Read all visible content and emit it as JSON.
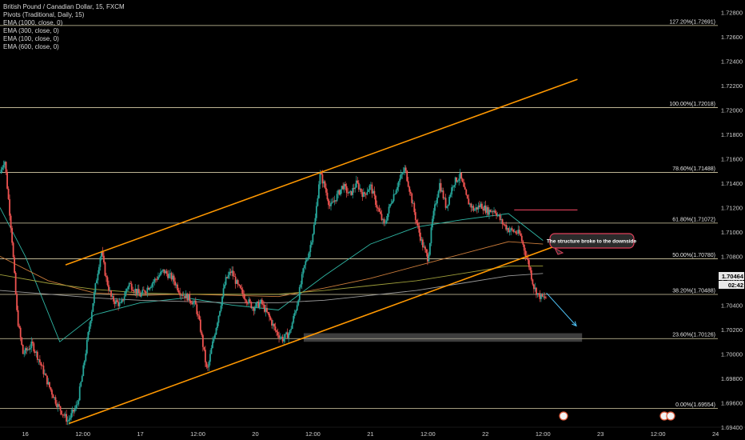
{
  "legend": {
    "symbol": "British Pound / Canadian Dollar, 15, FXCM",
    "indicators": [
      "Pivots (Traditional, Daily, 15)",
      "EMA (1000, close, 0)",
      "EMA (300, close, 0)",
      "EMA (100, close, 0)",
      "EMA (600, close, 0)"
    ]
  },
  "colors": {
    "background": "#000000",
    "up": "#26a69a",
    "down": "#ef5350",
    "channel": "#ff9800",
    "fib": "#d8cfa8",
    "resistance": "#e0405a",
    "ema1000": "#9a9a9a",
    "ema300": "#c97b3a",
    "ema100": "#2fb6a4",
    "ema600": "#9d9d3a",
    "arrow": "#4fc3f7",
    "price_badge": "#e8e8e8"
  },
  "annotation": {
    "text": "The structure broke to the downside"
  },
  "badges": {
    "price": "1.70464",
    "countdown": "02:42"
  },
  "chart_data": {
    "type": "candlestick",
    "xlabel": "",
    "ylabel": "",
    "ylim": [
      1.694,
      1.729
    ],
    "yticks": [
      "1.72800",
      "1.72600",
      "1.72400",
      "1.72200",
      "1.72000",
      "1.71800",
      "1.71600",
      "1.71400",
      "1.71200",
      "1.71000",
      "1.70800",
      "1.70600",
      "1.70400",
      "1.70200",
      "1.70000",
      "1.69800",
      "1.69600",
      "1.69400"
    ],
    "y_tick_values": [
      1.728,
      1.726,
      1.724,
      1.722,
      1.72,
      1.718,
      1.716,
      1.714,
      1.712,
      1.71,
      1.708,
      1.706,
      1.704,
      1.702,
      1.7,
      1.698,
      1.696,
      1.694
    ],
    "xticks": [
      {
        "label": "16",
        "t": 1.0
      },
      {
        "label": "12:00",
        "t": 1.5
      },
      {
        "label": "17",
        "t": 2.0
      },
      {
        "label": "12:00",
        "t": 2.5
      },
      {
        "label": "20",
        "t": 3.0
      },
      {
        "label": "12:00",
        "t": 3.5
      },
      {
        "label": "21",
        "t": 4.0
      },
      {
        "label": "12:00",
        "t": 4.5
      },
      {
        "label": "22",
        "t": 5.0
      },
      {
        "label": "12:00",
        "t": 5.5
      },
      {
        "label": "23",
        "t": 6.0
      },
      {
        "label": "12:00",
        "t": 6.5
      },
      {
        "label": "24",
        "t": 7.0
      }
    ],
    "xlim": [
      0.78,
      7.02
    ],
    "fib_levels": [
      {
        "label": "127.20%(1.72691)",
        "value": 1.72691
      },
      {
        "label": "100.00%(1.72018)",
        "value": 1.72018
      },
      {
        "label": "78.60%(1.71488)",
        "value": 1.71488
      },
      {
        "label": "61.80%(1.71072)",
        "value": 1.71072
      },
      {
        "label": "50.00%(1.70780)",
        "value": 1.7078
      },
      {
        "label": "38.20%(1.70488)",
        "value": 1.70488
      },
      {
        "label": "23.60%(1.70126)",
        "value": 1.70126
      },
      {
        "label": "0.00%(1.69554)",
        "value": 1.69554
      }
    ],
    "channel": {
      "lower": [
        [
          1.38,
          1.6943
        ],
        [
          5.8,
          1.7095
        ]
      ],
      "upper": [
        [
          1.35,
          1.7073
        ],
        [
          5.8,
          1.7225
        ]
      ]
    },
    "support_zone": [
      [
        3.42,
        1.701
      ],
      [
        5.84,
        1.7017
      ]
    ],
    "resistance_line": [
      [
        5.25,
        1.7118
      ],
      [
        5.8,
        1.7118
      ]
    ],
    "arrow": [
      [
        5.53,
        1.705
      ],
      [
        5.79,
        1.7023
      ]
    ],
    "price_anchors": [
      [
        0.78,
        1.7148
      ],
      [
        0.82,
        1.716
      ],
      [
        0.88,
        1.71
      ],
      [
        0.93,
        1.703
      ],
      [
        0.98,
        1.7
      ],
      [
        1.06,
        1.7008
      ],
      [
        1.12,
        1.6995
      ],
      [
        1.2,
        1.6975
      ],
      [
        1.28,
        1.6958
      ],
      [
        1.37,
        1.6945
      ],
      [
        1.45,
        1.6958
      ],
      [
        1.5,
        1.6985
      ],
      [
        1.56,
        1.7025
      ],
      [
        1.62,
        1.7062
      ],
      [
        1.66,
        1.7085
      ],
      [
        1.7,
        1.7063
      ],
      [
        1.75,
        1.7045
      ],
      [
        1.83,
        1.704
      ],
      [
        1.9,
        1.7058
      ],
      [
        2.0,
        1.7048
      ],
      [
        2.1,
        1.7058
      ],
      [
        2.2,
        1.7068
      ],
      [
        2.28,
        1.7062
      ],
      [
        2.35,
        1.705
      ],
      [
        2.42,
        1.7046
      ],
      [
        2.48,
        1.704
      ],
      [
        2.52,
        1.7022
      ],
      [
        2.58,
        1.6985
      ],
      [
        2.62,
        1.7005
      ],
      [
        2.68,
        1.7032
      ],
      [
        2.74,
        1.706
      ],
      [
        2.79,
        1.7068
      ],
      [
        2.85,
        1.7055
      ],
      [
        2.92,
        1.7045
      ],
      [
        2.98,
        1.7038
      ],
      [
        3.05,
        1.7042
      ],
      [
        3.12,
        1.703
      ],
      [
        3.18,
        1.7018
      ],
      [
        3.24,
        1.7012
      ],
      [
        3.3,
        1.7018
      ],
      [
        3.36,
        1.704
      ],
      [
        3.42,
        1.707
      ],
      [
        3.47,
        1.7085
      ],
      [
        3.52,
        1.711
      ],
      [
        3.56,
        1.7148
      ],
      [
        3.6,
        1.7138
      ],
      [
        3.65,
        1.712
      ],
      [
        3.7,
        1.7128
      ],
      [
        3.76,
        1.7138
      ],
      [
        3.82,
        1.713
      ],
      [
        3.88,
        1.714
      ],
      [
        3.94,
        1.713
      ],
      [
        4.0,
        1.7138
      ],
      [
        4.06,
        1.712
      ],
      [
        4.12,
        1.7105
      ],
      [
        4.18,
        1.7125
      ],
      [
        4.24,
        1.714
      ],
      [
        4.3,
        1.7152
      ],
      [
        4.34,
        1.7135
      ],
      [
        4.4,
        1.7108
      ],
      [
        4.45,
        1.709
      ],
      [
        4.5,
        1.7078
      ],
      [
        4.54,
        1.711
      ],
      [
        4.6,
        1.714
      ],
      [
        4.66,
        1.712
      ],
      [
        4.72,
        1.714
      ],
      [
        4.78,
        1.7146
      ],
      [
        4.84,
        1.7126
      ],
      [
        4.9,
        1.7118
      ],
      [
        4.96,
        1.7122
      ],
      [
        5.02,
        1.7117
      ],
      [
        5.08,
        1.7118
      ],
      [
        5.14,
        1.7108
      ],
      [
        5.2,
        1.7102
      ],
      [
        5.26,
        1.71
      ],
      [
        5.3,
        1.7098
      ],
      [
        5.34,
        1.7085
      ],
      [
        5.38,
        1.7072
      ],
      [
        5.42,
        1.7055
      ],
      [
        5.46,
        1.7048
      ],
      [
        5.5,
        1.7046
      ],
      [
        5.53,
        1.7046
      ]
    ],
    "ema_series": [
      {
        "key": "ema100",
        "points": [
          [
            0.78,
            1.712
          ],
          [
            1.0,
            1.708
          ],
          [
            1.3,
            1.701
          ],
          [
            1.6,
            1.7032
          ],
          [
            2.0,
            1.7042
          ],
          [
            2.4,
            1.7046
          ],
          [
            2.8,
            1.704
          ],
          [
            3.2,
            1.7036
          ],
          [
            3.6,
            1.7064
          ],
          [
            4.0,
            1.709
          ],
          [
            4.4,
            1.7104
          ],
          [
            4.8,
            1.711
          ],
          [
            5.2,
            1.7115
          ],
          [
            5.5,
            1.7093
          ]
        ]
      },
      {
        "key": "ema300",
        "points": [
          [
            0.78,
            1.708
          ],
          [
            1.2,
            1.706
          ],
          [
            1.6,
            1.705
          ],
          [
            2.0,
            1.7048
          ],
          [
            2.4,
            1.7049
          ],
          [
            2.8,
            1.7048
          ],
          [
            3.2,
            1.7047
          ],
          [
            3.6,
            1.7054
          ],
          [
            4.0,
            1.7062
          ],
          [
            4.4,
            1.7072
          ],
          [
            4.8,
            1.7082
          ],
          [
            5.2,
            1.7092
          ],
          [
            5.5,
            1.709
          ]
        ]
      },
      {
        "key": "ema600",
        "points": [
          [
            0.78,
            1.7065
          ],
          [
            1.2,
            1.7058
          ],
          [
            1.6,
            1.7053
          ],
          [
            2.0,
            1.705
          ],
          [
            2.4,
            1.7049
          ],
          [
            2.8,
            1.7049
          ],
          [
            3.2,
            1.7049
          ],
          [
            3.6,
            1.7052
          ],
          [
            4.0,
            1.7056
          ],
          [
            4.4,
            1.706
          ],
          [
            4.8,
            1.7066
          ],
          [
            5.2,
            1.7072
          ],
          [
            5.5,
            1.7072
          ]
        ]
      },
      {
        "key": "ema1000",
        "points": [
          [
            0.78,
            1.7052
          ],
          [
            1.2,
            1.7049
          ],
          [
            1.6,
            1.7046
          ],
          [
            2.0,
            1.7044
          ],
          [
            2.4,
            1.7043
          ],
          [
            2.8,
            1.7042
          ],
          [
            3.2,
            1.7042
          ],
          [
            3.6,
            1.7044
          ],
          [
            4.0,
            1.7048
          ],
          [
            4.4,
            1.7052
          ],
          [
            4.8,
            1.7058
          ],
          [
            5.2,
            1.7064
          ],
          [
            5.5,
            1.7066
          ]
        ]
      }
    ]
  }
}
